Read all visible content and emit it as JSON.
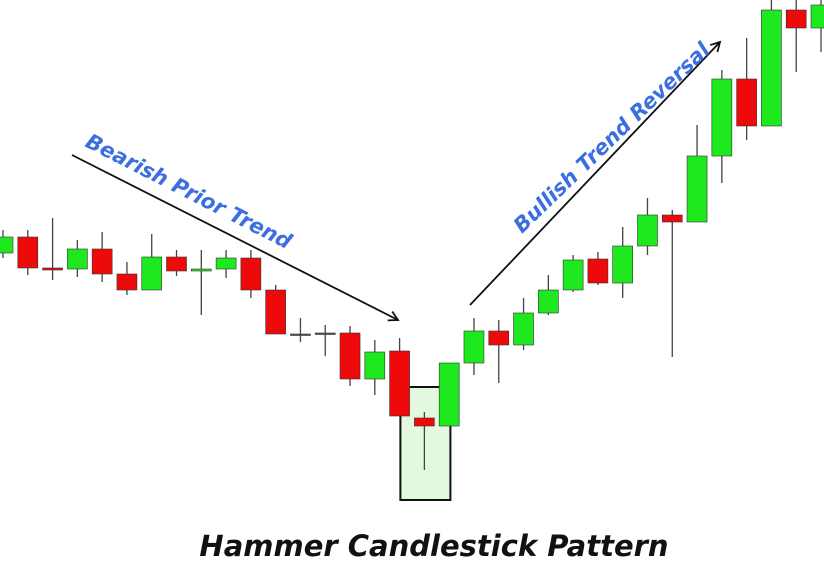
{
  "chart_data": {
    "type": "candlestick",
    "title": "Hammer Candlestick Pattern",
    "annotations": [
      "Bearish Prior Trend",
      "Bullish Trend Reversal"
    ],
    "ylim": [
      0,
      573
    ],
    "up_color": "#1ee81e",
    "down_color": "#ee0a0a",
    "doji_color": "#555555",
    "highlight_index": 17,
    "open": [
      320,
      336,
      305,
      304,
      324,
      299,
      283,
      316,
      302,
      304,
      315,
      283,
      239,
      240,
      240,
      194,
      222,
      155,
      147,
      210,
      242,
      228,
      260,
      283,
      314,
      290,
      327,
      358,
      351,
      417,
      494,
      447,
      563,
      545
    ],
    "close": [
      336,
      305,
      303,
      324,
      299,
      283,
      316,
      302,
      304,
      315,
      283,
      239,
      239,
      240,
      194,
      221,
      157,
      147,
      210,
      242,
      228,
      260,
      283,
      313,
      290,
      327,
      358,
      351,
      417,
      494,
      447,
      563,
      545,
      568
    ],
    "high": [
      343,
      343,
      355,
      333,
      341,
      311,
      339,
      323,
      323,
      323,
      323,
      288,
      255,
      248,
      247,
      233,
      235,
      161,
      210,
      255,
      253,
      275,
      298,
      318,
      321,
      346,
      375,
      363,
      448,
      503,
      535,
      573,
      573,
      573
    ],
    "low": [
      315,
      298,
      293,
      296,
      291,
      278,
      283,
      297,
      258,
      295,
      275,
      239,
      231,
      217,
      187,
      178,
      157,
      103,
      147,
      198,
      190,
      223,
      258,
      281,
      288,
      275,
      318,
      216,
      351,
      390,
      433,
      447,
      501,
      521
    ]
  }
}
